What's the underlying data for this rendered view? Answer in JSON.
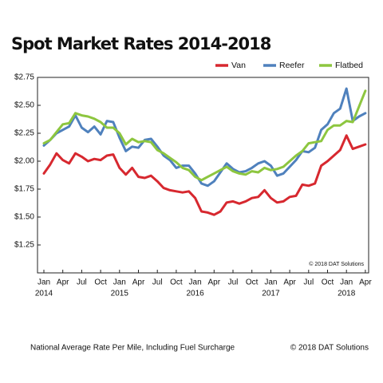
{
  "chart_data": {
    "type": "line",
    "title": "Spot Market Rates 2014-2018",
    "categories": [
      "Jan",
      null,
      null,
      "Apr",
      null,
      null,
      "Jul",
      null,
      null,
      "Oct",
      null,
      null,
      "Jan",
      null,
      null,
      "Apr",
      null,
      null,
      "Jul",
      null,
      null,
      "Oct",
      null,
      null,
      "Jan",
      null,
      null,
      "Apr",
      null,
      null,
      "Jul",
      null,
      null,
      "Oct",
      null,
      null,
      "Jan",
      null,
      null,
      "Apr",
      null,
      null,
      "Jul",
      null,
      null,
      "Oct",
      null,
      null,
      "Jan",
      null,
      null,
      "Apr"
    ],
    "year_labels": [
      "2014",
      "2015",
      "2016",
      "2017",
      "2018"
    ],
    "series": [
      {
        "name": "Van",
        "color": "#d7282f",
        "values": [
          1.89,
          1.97,
          2.07,
          2.01,
          1.98,
          2.07,
          2.04,
          2.0,
          2.02,
          2.01,
          2.05,
          2.06,
          1.94,
          1.88,
          1.94,
          1.86,
          1.85,
          1.87,
          1.82,
          1.76,
          1.74,
          1.73,
          1.72,
          1.73,
          1.67,
          1.55,
          1.54,
          1.52,
          1.55,
          1.63,
          1.64,
          1.62,
          1.64,
          1.67,
          1.68,
          1.74,
          1.67,
          1.63,
          1.64,
          1.68,
          1.69,
          1.79,
          1.78,
          1.8,
          1.96,
          2.0,
          2.05,
          2.1,
          2.23,
          2.11,
          2.13,
          2.15
        ]
      },
      {
        "name": "Reefer",
        "color": "#4f81bd",
        "values": [
          2.14,
          2.19,
          2.25,
          2.28,
          2.31,
          2.41,
          2.3,
          2.26,
          2.31,
          2.24,
          2.36,
          2.35,
          2.21,
          2.09,
          2.13,
          2.12,
          2.19,
          2.2,
          2.13,
          2.05,
          2.01,
          1.94,
          1.96,
          1.96,
          1.89,
          1.8,
          1.78,
          1.82,
          1.9,
          1.98,
          1.93,
          1.9,
          1.91,
          1.94,
          1.98,
          2.0,
          1.96,
          1.87,
          1.89,
          1.95,
          2.01,
          2.09,
          2.08,
          2.12,
          2.28,
          2.33,
          2.43,
          2.47,
          2.65,
          2.36,
          2.4,
          2.43
        ]
      },
      {
        "name": "Flatbed",
        "color": "#8dc63f",
        "values": [
          2.16,
          2.19,
          2.26,
          2.33,
          2.34,
          2.43,
          2.41,
          2.4,
          2.38,
          2.35,
          2.3,
          2.3,
          2.25,
          2.15,
          2.2,
          2.17,
          2.18,
          2.17,
          2.1,
          2.07,
          2.03,
          1.99,
          1.94,
          1.92,
          1.86,
          1.83,
          1.86,
          1.89,
          1.92,
          1.95,
          1.91,
          1.89,
          1.88,
          1.91,
          1.9,
          1.94,
          1.92,
          1.93,
          1.95,
          2.0,
          2.05,
          2.09,
          2.16,
          2.17,
          2.18,
          2.28,
          2.32,
          2.32,
          2.36,
          2.35,
          2.49,
          2.63
        ]
      }
    ],
    "ylim": [
      1.0,
      2.75
    ],
    "yticks": [
      {
        "value": 1.25,
        "label": "$1.25"
      },
      {
        "value": 1.5,
        "label": "$1.50"
      },
      {
        "value": 1.75,
        "label": "$1.75"
      },
      {
        "value": 2.0,
        "label": "$2.00"
      },
      {
        "value": 2.25,
        "label": "$2.25"
      },
      {
        "value": 2.5,
        "label": "$2.50"
      },
      {
        "value": 2.75,
        "label": "$2.75"
      }
    ],
    "grid": false,
    "legend_position": "top-right",
    "plot_note": "© 2018 DAT Solutions",
    "footer_left": "National Average Rate Per Mile, Including Fuel Surcharge",
    "footer_right": "© 2018 DAT Solutions"
  }
}
